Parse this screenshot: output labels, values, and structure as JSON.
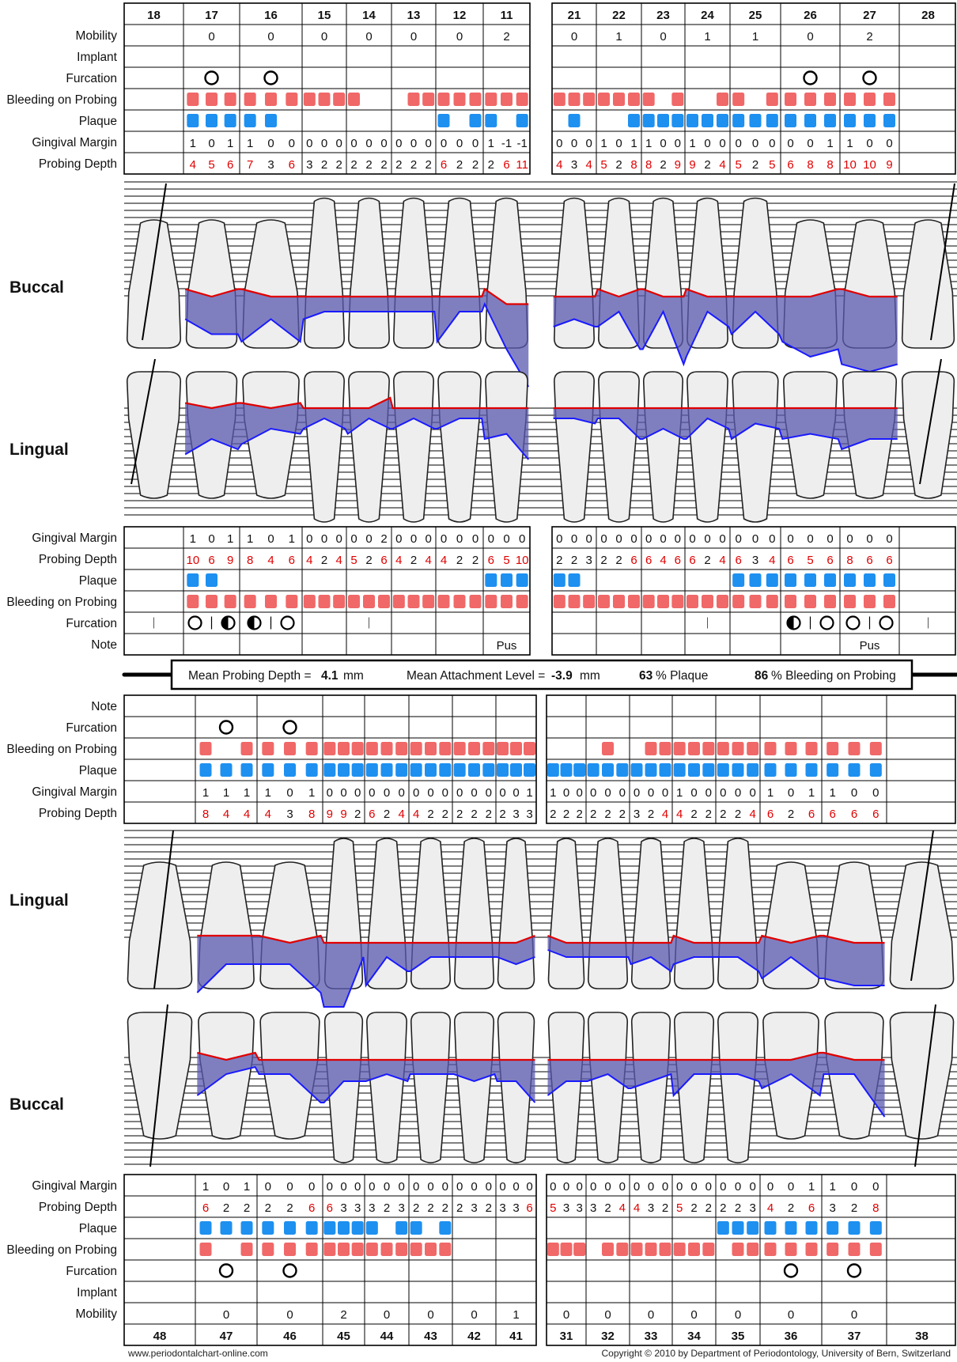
{
  "maxilla": {
    "teeth": [
      "18",
      "17",
      "16",
      "15",
      "14",
      "13",
      "12",
      "11",
      "21",
      "22",
      "23",
      "24",
      "25",
      "26",
      "27",
      "28"
    ],
    "mobility": [
      "",
      "0",
      "0",
      "0",
      "0",
      "0",
      "0",
      "2",
      "0",
      "1",
      "0",
      "1",
      "1",
      "0",
      "2",
      ""
    ],
    "implant": [
      "",
      "",
      "",
      "",
      "",
      "",
      "",
      "",
      "",
      "",
      "",
      "",
      "",
      "",
      "",
      ""
    ],
    "furcation_buccal": [
      0,
      1,
      1,
      0,
      0,
      0,
      0,
      0,
      0,
      0,
      0,
      0,
      0,
      1,
      1,
      0
    ],
    "bop_buccal": [
      [
        0,
        0,
        0
      ],
      [
        1,
        1,
        1
      ],
      [
        1,
        1,
        1
      ],
      [
        1,
        1,
        1
      ],
      [
        1,
        0,
        0
      ],
      [
        0,
        1,
        1
      ],
      [
        1,
        1,
        1
      ],
      [
        1,
        1,
        1
      ],
      [
        1,
        1,
        1
      ],
      [
        1,
        1,
        1
      ],
      [
        1,
        0,
        1
      ],
      [
        0,
        0,
        1
      ],
      [
        1,
        0,
        1
      ],
      [
        1,
        1,
        1
      ],
      [
        1,
        1,
        1
      ],
      [
        0,
        0,
        0
      ]
    ],
    "plaque_buccal": [
      [
        0,
        0,
        0
      ],
      [
        1,
        1,
        1
      ],
      [
        1,
        1,
        0
      ],
      [
        0,
        0,
        0
      ],
      [
        0,
        0,
        0
      ],
      [
        0,
        0,
        0
      ],
      [
        1,
        0,
        1
      ],
      [
        1,
        0,
        1
      ],
      [
        0,
        1,
        0
      ],
      [
        0,
        0,
        1
      ],
      [
        1,
        1,
        1
      ],
      [
        1,
        1,
        1
      ],
      [
        1,
        1,
        1
      ],
      [
        1,
        1,
        1
      ],
      [
        1,
        1,
        1
      ],
      [
        0,
        0,
        0
      ]
    ],
    "gm_buccal": [
      [
        "",
        "",
        ""
      ],
      [
        "1",
        "0",
        "1"
      ],
      [
        "1",
        "0",
        "0"
      ],
      [
        "0",
        "0",
        "0"
      ],
      [
        "0",
        "0",
        "0"
      ],
      [
        "0",
        "0",
        "0"
      ],
      [
        "0",
        "0",
        "0"
      ],
      [
        "1",
        "-1",
        "-1"
      ],
      [
        "0",
        "0",
        "0"
      ],
      [
        "1",
        "0",
        "1"
      ],
      [
        "1",
        "0",
        "0"
      ],
      [
        "1",
        "0",
        "0"
      ],
      [
        "0",
        "0",
        "0"
      ],
      [
        "0",
        "0",
        "1"
      ],
      [
        "1",
        "0",
        "0"
      ],
      [
        "",
        "",
        ""
      ]
    ],
    "pd_buccal": [
      [
        "",
        "",
        ""
      ],
      [
        "4",
        "5",
        "6"
      ],
      [
        "7",
        "3",
        "6"
      ],
      [
        "3",
        "2",
        "2"
      ],
      [
        "2",
        "2",
        "2"
      ],
      [
        "2",
        "2",
        "2"
      ],
      [
        "6",
        "2",
        "2"
      ],
      [
        "2",
        "6",
        "11"
      ],
      [
        "4",
        "3",
        "4"
      ],
      [
        "5",
        "2",
        "8"
      ],
      [
        "8",
        "2",
        "9"
      ],
      [
        "9",
        "2",
        "4"
      ],
      [
        "5",
        "2",
        "5"
      ],
      [
        "6",
        "8",
        "8"
      ],
      [
        "10",
        "10",
        "9"
      ],
      [
        "",
        "",
        ""
      ]
    ],
    "gm_lingual": [
      [
        "",
        "",
        ""
      ],
      [
        "1",
        "0",
        "1"
      ],
      [
        "1",
        "0",
        "1"
      ],
      [
        "0",
        "0",
        "0"
      ],
      [
        "0",
        "0",
        "2"
      ],
      [
        "0",
        "0",
        "0"
      ],
      [
        "0",
        "0",
        "0"
      ],
      [
        "0",
        "0",
        "0"
      ],
      [
        "0",
        "0",
        "0"
      ],
      [
        "0",
        "0",
        "0"
      ],
      [
        "0",
        "0",
        "0"
      ],
      [
        "0",
        "0",
        "0"
      ],
      [
        "0",
        "0",
        "0"
      ],
      [
        "0",
        "0",
        "0"
      ],
      [
        "0",
        "0",
        "0"
      ],
      [
        "",
        "",
        ""
      ]
    ],
    "pd_lingual": [
      [
        "",
        "",
        ""
      ],
      [
        "10",
        "6",
        "9"
      ],
      [
        "8",
        "4",
        "6"
      ],
      [
        "4",
        "2",
        "4"
      ],
      [
        "5",
        "2",
        "6"
      ],
      [
        "4",
        "2",
        "4"
      ],
      [
        "4",
        "2",
        "2"
      ],
      [
        "6",
        "5",
        "10"
      ],
      [
        "2",
        "2",
        "3"
      ],
      [
        "2",
        "2",
        "6"
      ],
      [
        "6",
        "4",
        "6"
      ],
      [
        "6",
        "2",
        "4"
      ],
      [
        "6",
        "3",
        "4"
      ],
      [
        "6",
        "5",
        "6"
      ],
      [
        "8",
        "6",
        "6"
      ],
      [
        "",
        "",
        ""
      ]
    ],
    "plaque_lingual": [
      [
        0,
        0,
        0
      ],
      [
        1,
        1,
        0
      ],
      [
        0,
        0,
        0
      ],
      [
        0,
        0,
        0
      ],
      [
        0,
        0,
        0
      ],
      [
        0,
        0,
        0
      ],
      [
        0,
        0,
        0
      ],
      [
        1,
        1,
        1
      ],
      [
        1,
        1,
        0
      ],
      [
        0,
        0,
        0
      ],
      [
        0,
        0,
        0
      ],
      [
        0,
        0,
        0
      ],
      [
        1,
        1,
        1
      ],
      [
        1,
        1,
        1
      ],
      [
        1,
        1,
        1
      ],
      [
        0,
        0,
        0
      ]
    ],
    "bop_lingual": [
      [
        0,
        0,
        0
      ],
      [
        1,
        1,
        1
      ],
      [
        1,
        1,
        1
      ],
      [
        1,
        1,
        1
      ],
      [
        1,
        1,
        1
      ],
      [
        1,
        1,
        1
      ],
      [
        1,
        1,
        1
      ],
      [
        1,
        1,
        1
      ],
      [
        1,
        1,
        1
      ],
      [
        1,
        1,
        1
      ],
      [
        1,
        1,
        1
      ],
      [
        1,
        1,
        1
      ],
      [
        1,
        1,
        1
      ],
      [
        1,
        1,
        1
      ],
      [
        1,
        1,
        1
      ],
      [
        0,
        0,
        0
      ]
    ],
    "furcation_lingual": [
      [
        "bar"
      ],
      [
        "O",
        "|",
        "H"
      ],
      [
        "H",
        "|",
        "O"
      ],
      [],
      [
        "bar"
      ],
      [],
      [],
      [],
      [],
      [],
      [],
      [
        "bar"
      ],
      [],
      [
        "H",
        "|",
        "O"
      ],
      [
        "O",
        "|",
        "O"
      ],
      [
        "bar"
      ]
    ],
    "note_lingual": [
      "",
      "",
      "",
      "",
      "",
      "",
      "",
      "Pus",
      "",
      "",
      "",
      "",
      "",
      "",
      "Pus",
      ""
    ]
  },
  "summary": {
    "mean_pd_label": "Mean Probing Depth =",
    "mean_pd_value": "4.1",
    "mean_al_label": "Mean Attachment Level =",
    "mean_al_value": "-3.9",
    "unit": "mm",
    "plaque_value": "63",
    "plaque_label": "% Plaque",
    "bop_value": "86",
    "bop_label": "% Bleeding on Probing"
  },
  "mandible": {
    "teeth": [
      "48",
      "47",
      "46",
      "45",
      "44",
      "43",
      "42",
      "41",
      "31",
      "32",
      "33",
      "34",
      "35",
      "36",
      "37",
      "38"
    ],
    "note": [
      "",
      "",
      "",
      "",
      "",
      "",
      "",
      "",
      "",
      "",
      "",
      "",
      "",
      "",
      "",
      ""
    ],
    "furcation_lingual": [
      0,
      1,
      1,
      0,
      0,
      0,
      0,
      0,
      0,
      0,
      0,
      0,
      0,
      0,
      0,
      0
    ],
    "bop_lingual": [
      [
        0,
        0,
        0
      ],
      [
        1,
        0,
        1
      ],
      [
        1,
        1,
        1
      ],
      [
        1,
        1,
        1
      ],
      [
        1,
        1,
        1
      ],
      [
        1,
        1,
        1
      ],
      [
        1,
        1,
        1
      ],
      [
        1,
        1,
        1
      ],
      [
        0,
        0,
        0
      ],
      [
        0,
        1,
        0
      ],
      [
        0,
        1,
        1
      ],
      [
        1,
        1,
        1
      ],
      [
        1,
        1,
        1
      ],
      [
        1,
        1,
        1
      ],
      [
        1,
        1,
        1
      ],
      [
        0,
        0,
        0
      ]
    ],
    "plaque_lingual": [
      [
        0,
        0,
        0
      ],
      [
        1,
        1,
        1
      ],
      [
        1,
        1,
        1
      ],
      [
        1,
        1,
        1
      ],
      [
        1,
        1,
        1
      ],
      [
        1,
        1,
        1
      ],
      [
        1,
        1,
        1
      ],
      [
        1,
        1,
        1
      ],
      [
        1,
        1,
        1
      ],
      [
        1,
        1,
        1
      ],
      [
        1,
        1,
        1
      ],
      [
        1,
        1,
        1
      ],
      [
        1,
        1,
        1
      ],
      [
        1,
        1,
        1
      ],
      [
        1,
        1,
        1
      ],
      [
        0,
        0,
        0
      ]
    ],
    "gm_lingual": [
      [
        "",
        "",
        ""
      ],
      [
        "1",
        "1",
        "1"
      ],
      [
        "1",
        "0",
        "1"
      ],
      [
        "0",
        "0",
        "0"
      ],
      [
        "0",
        "0",
        "0"
      ],
      [
        "0",
        "0",
        "0"
      ],
      [
        "0",
        "0",
        "0"
      ],
      [
        "0",
        "0",
        "1"
      ],
      [
        "1",
        "0",
        "0"
      ],
      [
        "0",
        "0",
        "0"
      ],
      [
        "0",
        "0",
        "0"
      ],
      [
        "1",
        "0",
        "0"
      ],
      [
        "0",
        "0",
        "0"
      ],
      [
        "1",
        "0",
        "1"
      ],
      [
        "1",
        "0",
        "0"
      ],
      [
        "",
        "",
        ""
      ]
    ],
    "pd_lingual": [
      [
        "",
        "",
        ""
      ],
      [
        "8",
        "4",
        "4"
      ],
      [
        "4",
        "3",
        "8"
      ],
      [
        "9",
        "9",
        "2"
      ],
      [
        "6",
        "2",
        "4"
      ],
      [
        "4",
        "2",
        "2"
      ],
      [
        "2",
        "2",
        "2"
      ],
      [
        "2",
        "3",
        "3"
      ],
      [
        "2",
        "2",
        "2"
      ],
      [
        "2",
        "2",
        "2"
      ],
      [
        "3",
        "2",
        "4"
      ],
      [
        "4",
        "2",
        "2"
      ],
      [
        "2",
        "2",
        "4"
      ],
      [
        "6",
        "2",
        "6"
      ],
      [
        "6",
        "6",
        "6"
      ],
      [
        "",
        "",
        ""
      ]
    ],
    "gm_buccal": [
      [
        "",
        "",
        ""
      ],
      [
        "1",
        "0",
        "1"
      ],
      [
        "0",
        "0",
        "0"
      ],
      [
        "0",
        "0",
        "0"
      ],
      [
        "0",
        "0",
        "0"
      ],
      [
        "0",
        "0",
        "0"
      ],
      [
        "0",
        "0",
        "0"
      ],
      [
        "0",
        "0",
        "0"
      ],
      [
        "0",
        "0",
        "0"
      ],
      [
        "0",
        "0",
        "0"
      ],
      [
        "0",
        "0",
        "0"
      ],
      [
        "0",
        "0",
        "0"
      ],
      [
        "0",
        "0",
        "0"
      ],
      [
        "0",
        "0",
        "1"
      ],
      [
        "1",
        "0",
        "0"
      ],
      [
        "",
        "",
        ""
      ]
    ],
    "pd_buccal": [
      [
        "",
        "",
        ""
      ],
      [
        "6",
        "2",
        "2"
      ],
      [
        "2",
        "2",
        "6"
      ],
      [
        "6",
        "3",
        "3"
      ],
      [
        "3",
        "2",
        "3"
      ],
      [
        "2",
        "2",
        "2"
      ],
      [
        "2",
        "3",
        "2"
      ],
      [
        "3",
        "3",
        "6"
      ],
      [
        "5",
        "3",
        "3"
      ],
      [
        "3",
        "2",
        "4"
      ],
      [
        "4",
        "3",
        "2"
      ],
      [
        "5",
        "2",
        "2"
      ],
      [
        "2",
        "2",
        "3"
      ],
      [
        "4",
        "2",
        "6"
      ],
      [
        "3",
        "2",
        "8"
      ],
      [
        "",
        "",
        ""
      ]
    ],
    "plaque_buccal": [
      [
        0,
        0,
        0
      ],
      [
        1,
        1,
        1
      ],
      [
        1,
        1,
        1
      ],
      [
        1,
        1,
        1
      ],
      [
        1,
        0,
        1
      ],
      [
        1,
        0,
        1
      ],
      [
        0,
        0,
        0
      ],
      [
        0,
        0,
        0
      ],
      [
        0,
        0,
        0
      ],
      [
        0,
        0,
        0
      ],
      [
        0,
        0,
        0
      ],
      [
        0,
        0,
        0
      ],
      [
        1,
        1,
        1
      ],
      [
        1,
        1,
        1
      ],
      [
        1,
        1,
        1
      ],
      [
        0,
        0,
        0
      ]
    ],
    "bop_buccal": [
      [
        0,
        0,
        0
      ],
      [
        1,
        0,
        1
      ],
      [
        1,
        1,
        1
      ],
      [
        1,
        1,
        1
      ],
      [
        1,
        1,
        1
      ],
      [
        1,
        1,
        1
      ],
      [
        0,
        0,
        0
      ],
      [
        0,
        0,
        0
      ],
      [
        1,
        1,
        1
      ],
      [
        0,
        1,
        1
      ],
      [
        1,
        1,
        1
      ],
      [
        1,
        1,
        1
      ],
      [
        0,
        1,
        1
      ],
      [
        1,
        1,
        1
      ],
      [
        1,
        1,
        1
      ],
      [
        0,
        0,
        0
      ]
    ],
    "furcation_buccal": [
      0,
      1,
      1,
      0,
      0,
      0,
      0,
      0,
      0,
      0,
      0,
      0,
      0,
      1,
      1,
      0
    ],
    "implant": [
      "",
      "",
      "",
      "",
      "",
      "",
      "",
      "",
      "",
      "",
      "",
      "",
      "",
      "",
      "",
      ""
    ],
    "mobility": [
      "",
      "0",
      "0",
      "2",
      "0",
      "0",
      "0",
      "1",
      "0",
      "0",
      "0",
      "0",
      "0",
      "0",
      "0",
      ""
    ]
  },
  "row_labels": {
    "mobility": "Mobility",
    "implant": "Implant",
    "furcation": "Furcation",
    "bop": "Bleeding on Probing",
    "plaque": "Plaque",
    "gm": "Gingival Margin",
    "pd": "Probing Depth",
    "note": "Note"
  },
  "section_labels": {
    "upper_buccal": "Buccal",
    "upper_lingual": "Lingual",
    "lower_lingual": "Lingual",
    "lower_buccal": "Buccal"
  },
  "colors": {
    "bleeding": "#f06868",
    "plaque": "#1e90f0",
    "pd_red": "#e00000",
    "gm_line": "#e00000",
    "pd_line": "#1a1aff",
    "pocket_fill": "#5a5ab0"
  },
  "footer": {
    "left": "www.periodontalchart-online.com",
    "right": "Copyright © 2010 by Department of Periodontology, University of Bern, Switzerland"
  }
}
